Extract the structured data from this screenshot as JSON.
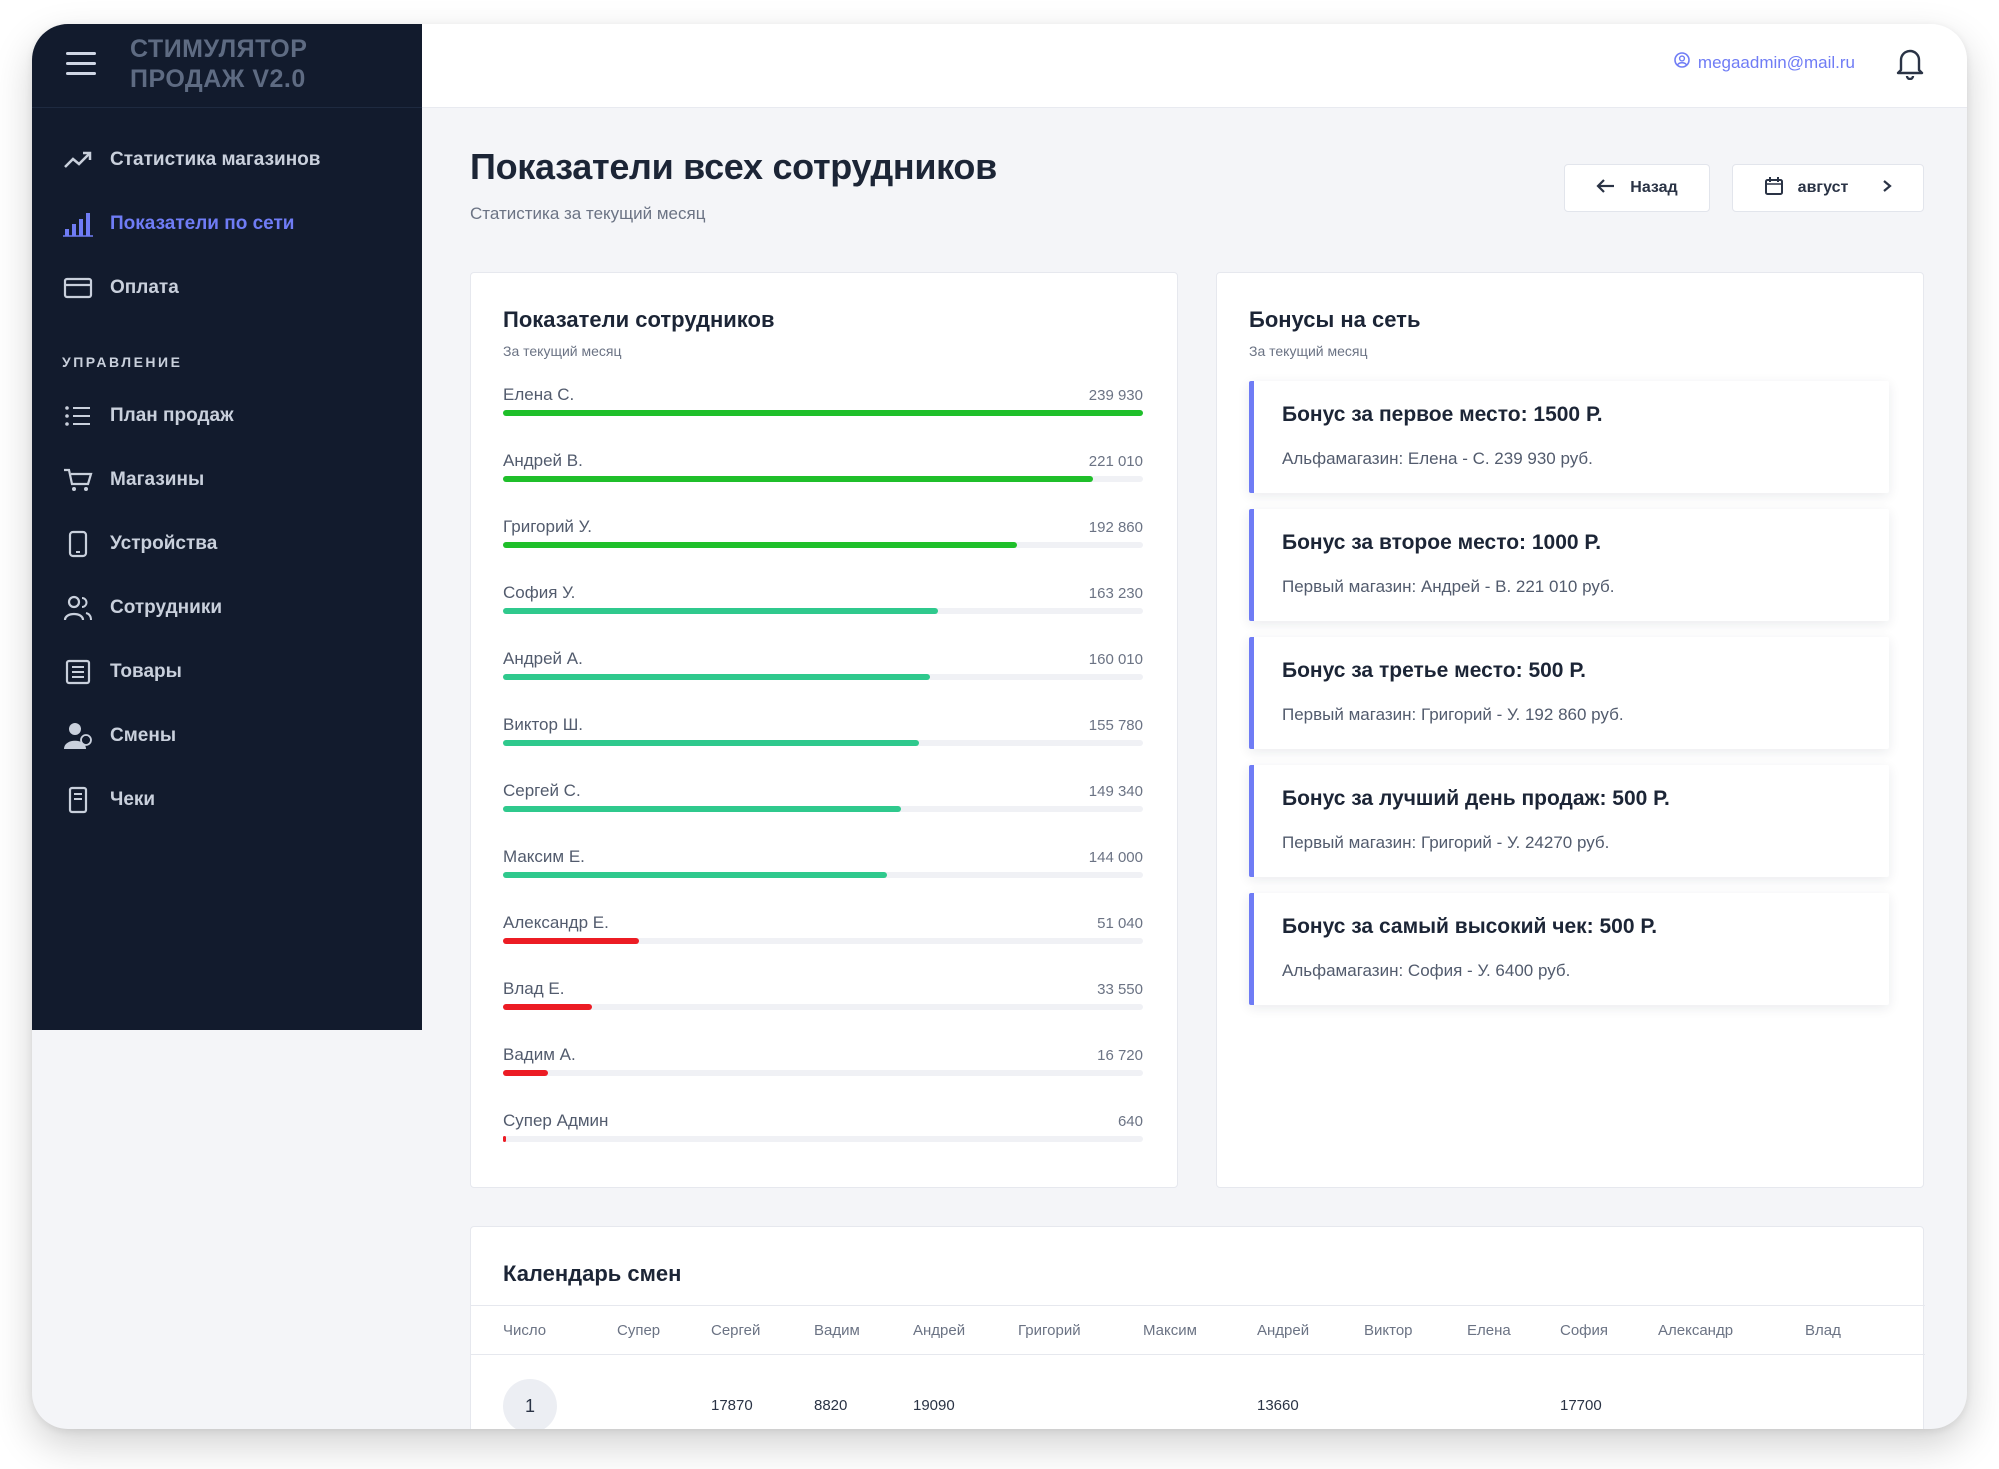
{
  "app": {
    "brand": "СТИМУЛЯТОР ПРОДАЖ V2.0",
    "user_email": "megaadmin@mail.ru"
  },
  "sidebar": {
    "items": [
      {
        "label": "Статистика магазинов",
        "icon": "trending-up-icon",
        "active": false
      },
      {
        "label": "Показатели по сети",
        "icon": "bar-chart-icon",
        "active": true
      },
      {
        "label": "Оплата",
        "icon": "wallet-icon",
        "active": false
      }
    ],
    "section_title": "УПРАВЛЕНИЕ",
    "manage_items": [
      {
        "label": "План продаж",
        "icon": "list-icon"
      },
      {
        "label": "Магазины",
        "icon": "cart-icon"
      },
      {
        "label": "Устройства",
        "icon": "device-icon"
      },
      {
        "label": "Сотрудники",
        "icon": "users-icon"
      },
      {
        "label": "Товары",
        "icon": "catalog-icon"
      },
      {
        "label": "Смены",
        "icon": "person-icon"
      },
      {
        "label": "Чеки",
        "icon": "receipt-icon"
      }
    ]
  },
  "header": {
    "title": "Показатели всех сотрудников",
    "subtitle": "Статистика за текущий месяц",
    "back_label": "Назад",
    "month_label": "август"
  },
  "employees_card": {
    "title": "Показатели сотрудников",
    "subtitle": "За текущий месяц",
    "rows": [
      {
        "name": "Елена С.",
        "value": "239 930",
        "amount": 239930,
        "color": "#1fbf2a"
      },
      {
        "name": "Андрей В.",
        "value": "221 010",
        "amount": 221010,
        "color": "#1fbf2a"
      },
      {
        "name": "Григорий У.",
        "value": "192 860",
        "amount": 192860,
        "color": "#1fbf2a"
      },
      {
        "name": "София У.",
        "value": "163 230",
        "amount": 163230,
        "color": "#2fc98d"
      },
      {
        "name": "Андрей А.",
        "value": "160 010",
        "amount": 160010,
        "color": "#2fc98d"
      },
      {
        "name": "Виктор Ш.",
        "value": "155 780",
        "amount": 155780,
        "color": "#2fc98d"
      },
      {
        "name": "Сергей С.",
        "value": "149 340",
        "amount": 149340,
        "color": "#2fc98d"
      },
      {
        "name": "Максим Е.",
        "value": "144 000",
        "amount": 144000,
        "color": "#2fc98d"
      },
      {
        "name": "Александр Е.",
        "value": "51 040",
        "amount": 51040,
        "color": "#ec1c24"
      },
      {
        "name": "Влад Е.",
        "value": "33 550",
        "amount": 33550,
        "color": "#ec1c24"
      },
      {
        "name": "Вадим А.",
        "value": "16 720",
        "amount": 16720,
        "color": "#ec1c24"
      },
      {
        "name": "Супер Админ",
        "value": "640",
        "amount": 640,
        "color": "#ec1c24"
      }
    ]
  },
  "bonus_card": {
    "title": "Бонусы на сеть",
    "subtitle": "За текущий месяц",
    "items": [
      {
        "title": "Бонус за первое место: 1500 Р.",
        "desc": "Альфамагазин: Елена - С. 239 930 руб."
      },
      {
        "title": "Бонус за второе место: 1000 Р.",
        "desc": "Первый магазин: Андрей - В. 221 010 руб."
      },
      {
        "title": "Бонус за третье место: 500 Р.",
        "desc": "Первый магазин: Григорий - У. 192 860 руб."
      },
      {
        "title": "Бонус за лучший день продаж: 500 Р.",
        "desc": "Первый магазин: Григорий - У. 24270 руб."
      },
      {
        "title": "Бонус за самый высокий чек: 500 Р.",
        "desc": "Альфамагазин: София - У. 6400 руб."
      }
    ]
  },
  "calendar": {
    "title": "Календарь смен",
    "columns": [
      "Число",
      "Супер",
      "Сергей",
      "Вадим",
      "Андрей",
      "Григорий",
      "Максим",
      "Андрей",
      "Виктор",
      "Елена",
      "София",
      "Александр",
      "Влад"
    ],
    "rows": [
      {
        "day": "1",
        "cells": [
          "",
          "17870",
          "8820",
          "19090",
          "",
          "",
          "13660",
          "",
          "",
          "17700",
          "",
          ""
        ]
      }
    ]
  },
  "colors": {
    "accent": "#6f7cf5",
    "sidebar_bg": "#121b2d",
    "page_bg": "#f4f5f8"
  }
}
